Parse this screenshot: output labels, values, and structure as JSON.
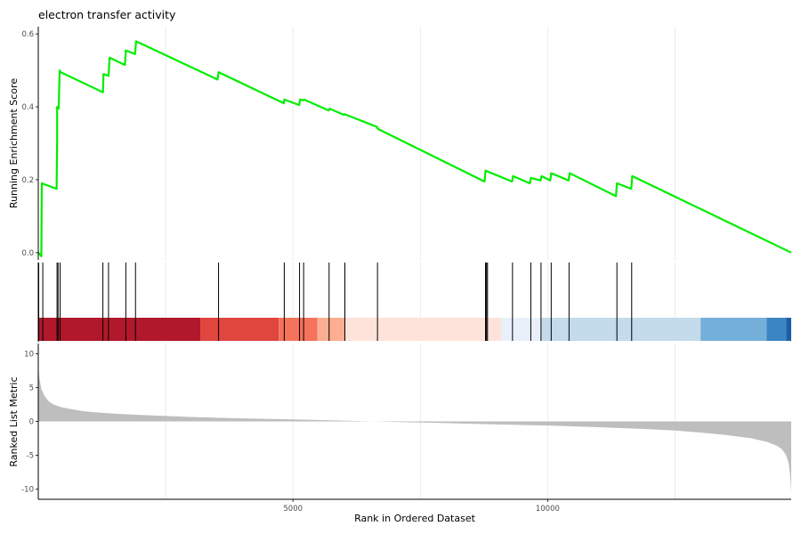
{
  "chart_data": [
    {
      "type": "line",
      "title": "electron transfer activity",
      "ylabel": "Running Enrichment Score",
      "xlabel": "",
      "xlim": [
        0,
        14780
      ],
      "ylim": [
        -0.02,
        0.62
      ],
      "yticks": [
        0.0,
        0.2,
        0.4,
        0.6
      ],
      "ytick_labels": [
        "0.0",
        "0.2",
        "0.4",
        "0.6"
      ],
      "xgrid": [
        2500,
        5000,
        7500,
        10000,
        12500
      ],
      "grid": true,
      "line_color": "#00ee00",
      "series": [
        {
          "x": [
            0,
            60,
            70,
            360,
            370,
            370,
            380,
            400,
            420,
            440,
            1270,
            1280,
            1380,
            1400,
            1700,
            1720,
            1900,
            1920,
            3520,
            3540,
            4820,
            4830,
            5120,
            5140,
            5200,
            5220,
            5700,
            5720,
            6000,
            6010,
            6650,
            6660,
            8760,
            8780,
            9300,
            9320,
            9650,
            9670,
            9860,
            9880,
            10050,
            10070,
            10410,
            10430,
            11340,
            11360,
            11640,
            11660,
            14780
          ],
          "y": [
            0.0,
            -0.01,
            0.19,
            0.175,
            0.3,
            0.4,
            0.395,
            0.395,
            0.5,
            0.495,
            0.44,
            0.49,
            0.485,
            0.535,
            0.515,
            0.555,
            0.545,
            0.58,
            0.475,
            0.495,
            0.41,
            0.42,
            0.405,
            0.42,
            0.418,
            0.42,
            0.39,
            0.395,
            0.378,
            0.38,
            0.345,
            0.34,
            0.195,
            0.225,
            0.195,
            0.21,
            0.19,
            0.205,
            0.198,
            0.21,
            0.198,
            0.218,
            0.198,
            0.218,
            0.155,
            0.19,
            0.175,
            0.21,
            0.0
          ]
        }
      ]
    },
    {
      "type": "rug",
      "xlim": [
        0,
        14780
      ],
      "hit_positions": [
        0,
        80,
        360,
        380,
        420,
        1260,
        1370,
        1710,
        1900,
        3530,
        4820,
        5120,
        5200,
        5700,
        6010,
        6650,
        8770,
        8790,
        8810,
        9300,
        9660,
        9860,
        10060,
        10410,
        11350,
        11640
      ],
      "color_bands": [
        {
          "from": 0,
          "to": 3180,
          "color": "#b2182b"
        },
        {
          "from": 3180,
          "to": 4720,
          "color": "#e0453e"
        },
        {
          "from": 4720,
          "to": 5480,
          "color": "#f4735a"
        },
        {
          "from": 5480,
          "to": 6010,
          "color": "#fcae91"
        },
        {
          "from": 6010,
          "to": 9090,
          "color": "#fde3d9"
        },
        {
          "from": 9090,
          "to": 9880,
          "color": "#eaf0fb"
        },
        {
          "from": 9880,
          "to": 13000,
          "color": "#c3dbea"
        },
        {
          "from": 13000,
          "to": 14300,
          "color": "#74b0d9"
        },
        {
          "from": 14300,
          "to": 14680,
          "color": "#3b85c2"
        },
        {
          "from": 14680,
          "to": 14780,
          "color": "#1c5fa8"
        }
      ]
    },
    {
      "type": "area",
      "ylabel": "Ranked List Metric",
      "xlabel": "Rank in Ordered Dataset",
      "xlim": [
        0,
        14780
      ],
      "ylim": [
        -11.5,
        11.5
      ],
      "yticks": [
        10,
        5,
        0,
        -5,
        -10
      ],
      "ytick_labels": [
        "10",
        "5",
        "0",
        "-5",
        "-10"
      ],
      "xticks": [
        5000,
        10000
      ],
      "xtick_labels": [
        "5000",
        "10000"
      ],
      "fill_color": "#bebebe",
      "x": [
        0,
        20,
        60,
        120,
        200,
        300,
        450,
        650,
        900,
        1200,
        1600,
        2000,
        2500,
        3000,
        3500,
        4000,
        5000,
        6000,
        6600,
        7000,
        8000,
        9000,
        10000,
        11000,
        12000,
        12500,
        13000,
        13500,
        14000,
        14300,
        14500,
        14600,
        14680,
        14730,
        14760,
        14780
      ],
      "y": [
        8.4,
        6.5,
        4.8,
        3.8,
        3.0,
        2.5,
        2.1,
        1.8,
        1.5,
        1.3,
        1.1,
        0.95,
        0.8,
        0.65,
        0.55,
        0.45,
        0.3,
        0.12,
        0.0,
        -0.08,
        -0.25,
        -0.45,
        -0.6,
        -0.85,
        -1.15,
        -1.35,
        -1.65,
        -2.0,
        -2.5,
        -3.0,
        -3.6,
        -4.1,
        -5.0,
        -6.2,
        -8.0,
        -10.6
      ]
    }
  ]
}
